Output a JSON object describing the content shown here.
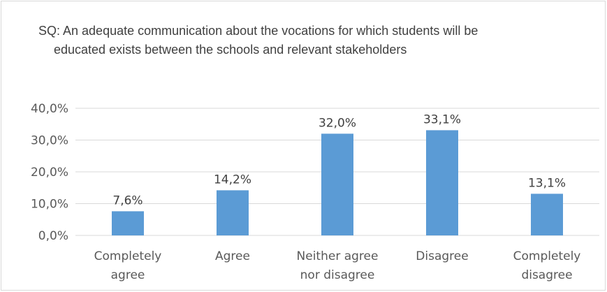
{
  "chart_data": {
    "type": "bar",
    "title": "SQ: An adequate communication about the vocations for which students will be educated exists between the schools and relevant stakeholders",
    "categories": [
      [
        "Completely",
        "agree"
      ],
      [
        "Agree"
      ],
      [
        "Neither agree",
        "nor disagree"
      ],
      [
        "Disagree"
      ],
      [
        "Completely",
        "disagree"
      ]
    ],
    "values": [
      7.6,
      14.2,
      32.0,
      33.1,
      13.1
    ],
    "data_labels": [
      "7,6%",
      "14,2%",
      "32,0%",
      "33,1%",
      "13,1%"
    ],
    "yticks": [
      0,
      10,
      20,
      30,
      40
    ],
    "ytick_labels": [
      "0,0%",
      "10,0%",
      "20,0%",
      "30,0%",
      "40,0%"
    ],
    "ylim": [
      0,
      40
    ],
    "grid": true,
    "legend": "none",
    "bar_color": "#5b9bd5",
    "grid_color": "#d9d9d9"
  }
}
